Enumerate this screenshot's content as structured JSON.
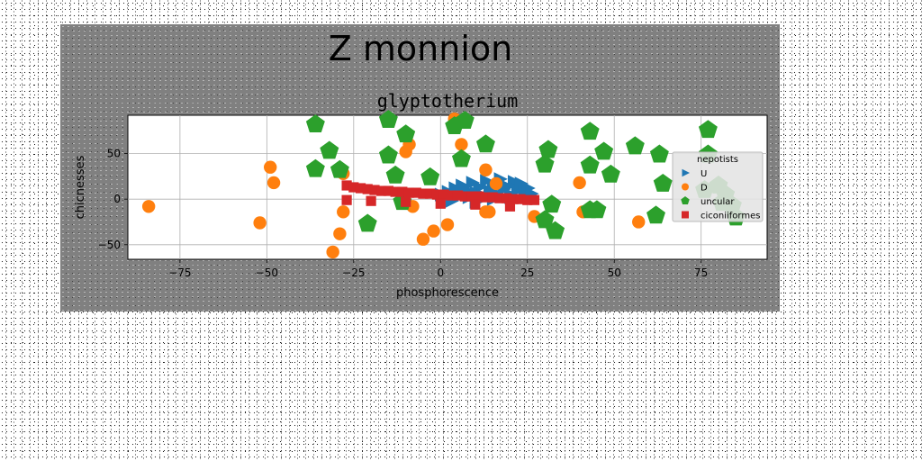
{
  "chart_data": {
    "type": "scatter",
    "suptitle": "Z monnion",
    "title": "glyptotherium",
    "xlabel": "phosphorescence",
    "ylabel": "chicnesses",
    "xlim": [
      -90,
      94
    ],
    "ylim": [
      -66,
      92
    ],
    "xticks": [
      -75,
      -50,
      -25,
      0,
      25,
      50,
      75
    ],
    "xtick_labels": [
      "−75",
      "−50",
      "−25",
      "0",
      "25",
      "50",
      "75"
    ],
    "yticks": [
      -50,
      0,
      50
    ],
    "ytick_labels": [
      "−50",
      "0",
      "50"
    ],
    "grid": true,
    "legend": {
      "title": "nepotists",
      "placement": "right",
      "entries": [
        {
          "label": "U",
          "marker": "triangle-right",
          "color": "#1f77b4"
        },
        {
          "label": "D",
          "marker": "circle",
          "color": "#ff7f0e"
        },
        {
          "label": "uncular",
          "marker": "pentagon",
          "color": "#2ca02c"
        },
        {
          "label": "ciconiiformes",
          "marker": "square",
          "color": "#d62728"
        }
      ]
    },
    "series": [
      {
        "name": "U",
        "marker": "triangle-right",
        "color": "#1f77b4",
        "points": [
          [
            0,
            5
          ],
          [
            2,
            8
          ],
          [
            4,
            12
          ],
          [
            5,
            3
          ],
          [
            6,
            15
          ],
          [
            7,
            10
          ],
          [
            8,
            2
          ],
          [
            9,
            18
          ],
          [
            10,
            7
          ],
          [
            11,
            13
          ],
          [
            12,
            4
          ],
          [
            13,
            20
          ],
          [
            14,
            9
          ],
          [
            15,
            16
          ],
          [
            16,
            6
          ],
          [
            17,
            22
          ],
          [
            18,
            11
          ],
          [
            19,
            14
          ],
          [
            20,
            5
          ],
          [
            21,
            19
          ],
          [
            22,
            10
          ],
          [
            23,
            17
          ],
          [
            24,
            8
          ],
          [
            25,
            12
          ],
          [
            26,
            6
          ],
          [
            3,
            -2
          ],
          [
            10,
            -3
          ],
          [
            15,
            0
          ],
          [
            20,
            2
          ]
        ]
      },
      {
        "name": "D",
        "marker": "circle",
        "color": "#ff7f0e",
        "points": [
          [
            -84,
            -8
          ],
          [
            -52,
            -26
          ],
          [
            -49,
            35
          ],
          [
            -48,
            18
          ],
          [
            -31,
            -58
          ],
          [
            -29,
            -38
          ],
          [
            -28,
            -14
          ],
          [
            -28,
            28
          ],
          [
            -10,
            52
          ],
          [
            -9,
            60
          ],
          [
            -8,
            -8
          ],
          [
            -5,
            -44
          ],
          [
            -2,
            -35
          ],
          [
            2,
            -28
          ],
          [
            4,
            88
          ],
          [
            6,
            60
          ],
          [
            13,
            32
          ],
          [
            13,
            -14
          ],
          [
            14,
            -14
          ],
          [
            16,
            17
          ],
          [
            27,
            -19
          ],
          [
            40,
            18
          ],
          [
            41,
            -14
          ],
          [
            57,
            -25
          ]
        ]
      },
      {
        "name": "uncular",
        "marker": "pentagon",
        "color": "#2ca02c",
        "points": [
          [
            -36,
            82
          ],
          [
            -36,
            33
          ],
          [
            -32,
            53
          ],
          [
            -29,
            32
          ],
          [
            -21,
            -27
          ],
          [
            -15,
            48
          ],
          [
            -15,
            87
          ],
          [
            -13,
            26
          ],
          [
            -11,
            -3
          ],
          [
            -10,
            71
          ],
          [
            -3,
            24
          ],
          [
            4,
            80
          ],
          [
            6,
            44
          ],
          [
            7,
            86
          ],
          [
            13,
            60
          ],
          [
            30,
            38
          ],
          [
            31,
            54
          ],
          [
            30,
            -23
          ],
          [
            32,
            -6
          ],
          [
            33,
            -35
          ],
          [
            43,
            74
          ],
          [
            43,
            37
          ],
          [
            43,
            -12
          ],
          [
            45,
            -12
          ],
          [
            47,
            52
          ],
          [
            49,
            27
          ],
          [
            56,
            58
          ],
          [
            63,
            49
          ],
          [
            64,
            17
          ],
          [
            62,
            -18
          ],
          [
            77,
            49
          ],
          [
            77,
            76
          ],
          [
            81,
            -4
          ],
          [
            84,
            -7
          ],
          [
            85,
            -20
          ],
          [
            82,
            5
          ],
          [
            80,
            15
          ],
          [
            76,
            10
          ]
        ]
      },
      {
        "name": "ciconiiformes",
        "marker": "square",
        "color": "#d62728",
        "points": [
          [
            -27,
            15
          ],
          [
            -25,
            13
          ],
          [
            -23,
            12
          ],
          [
            -21,
            11
          ],
          [
            -19,
            10
          ],
          [
            -17,
            9
          ],
          [
            -15,
            9
          ],
          [
            -13,
            8
          ],
          [
            -11,
            8
          ],
          [
            -9,
            7
          ],
          [
            -7,
            7
          ],
          [
            -5,
            6
          ],
          [
            -3,
            6
          ],
          [
            -1,
            5
          ],
          [
            1,
            5
          ],
          [
            3,
            4
          ],
          [
            5,
            4
          ],
          [
            7,
            3
          ],
          [
            9,
            3
          ],
          [
            11,
            3
          ],
          [
            13,
            2
          ],
          [
            15,
            2
          ],
          [
            17,
            1
          ],
          [
            19,
            1
          ],
          [
            21,
            0
          ],
          [
            23,
            0
          ],
          [
            25,
            -1
          ],
          [
            27,
            -1
          ],
          [
            -27,
            -1
          ],
          [
            -20,
            -2
          ],
          [
            -10,
            -3
          ],
          [
            0,
            -5
          ],
          [
            10,
            -6
          ],
          [
            20,
            -8
          ]
        ]
      }
    ]
  }
}
